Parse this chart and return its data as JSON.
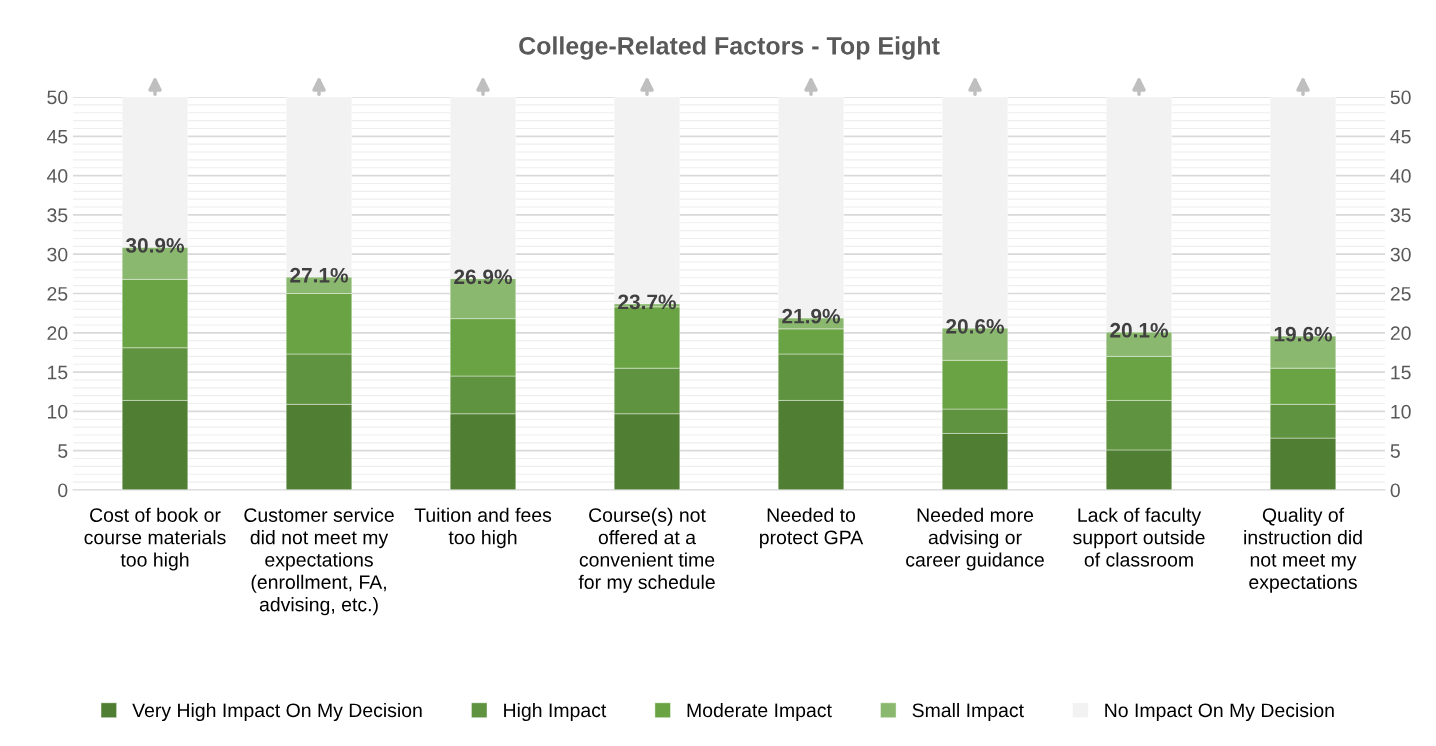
{
  "chart_data": {
    "type": "bar",
    "stacked": true,
    "title": "College-Related Factors - Top Eight",
    "categories": [
      "Cost of book or course materials too high",
      "Customer service did not meet my expectations (enrollment, FA, advising, etc.)",
      "Tuition and fees too high",
      "Course(s) not offered at a convenient time for my schedule",
      "Needed to protect GPA",
      "Needed more advising or career guidance",
      "Lack of faculty support outside of classroom",
      "Quality of instruction did not meet my expectations"
    ],
    "series": [
      {
        "name": "Very High Impact On My Decision",
        "color": "#507e32",
        "values": [
          11.4,
          10.9,
          9.7,
          9.7,
          11.4,
          7.2,
          5.1,
          6.6
        ]
      },
      {
        "name": "High Impact",
        "color": "#5f9340",
        "values": [
          6.7,
          6.4,
          4.8,
          5.8,
          5.9,
          3.1,
          6.3,
          4.3
        ]
      },
      {
        "name": "Moderate Impact",
        "color": "#6aa343",
        "values": [
          8.7,
          7.7,
          7.3,
          7.8,
          3.2,
          6.2,
          5.6,
          4.6
        ]
      },
      {
        "name": "Small Impact",
        "color": "#8ab86e",
        "values": [
          4.1,
          2.1,
          5.1,
          0.4,
          1.4,
          4.1,
          3.1,
          4.1
        ]
      },
      {
        "name": "No Impact On My Decision",
        "color": "#f2f2f2",
        "values": [
          19.1,
          22.9,
          23.1,
          26.3,
          28.1,
          29.4,
          29.9,
          30.4
        ]
      }
    ],
    "annotations": [
      {
        "text": "30.9%",
        "x": "Cost of book or course materials too high",
        "y": 30.9
      },
      {
        "text": "27.1%",
        "x": "Customer service did not meet my expectations (enrollment, FA, advising, etc.)",
        "y": 27.1
      },
      {
        "text": "26.9%",
        "x": "Tuition and fees too high",
        "y": 26.9
      },
      {
        "text": "23.7%",
        "x": "Course(s) not offered at a convenient time for my schedule",
        "y": 23.7
      },
      {
        "text": "21.9%",
        "x": "Needed to protect GPA",
        "y": 21.9
      },
      {
        "text": "20.6%",
        "x": "Needed more advising or career guidance",
        "y": 20.6
      },
      {
        "text": "20.1%",
        "x": "Lack of faculty support outside of classroom",
        "y": 20.1
      },
      {
        "text": "19.6%",
        "x": "Quality of instruction did not meet my expectations",
        "y": 19.6
      }
    ],
    "ylim": [
      0,
      50
    ],
    "yticks": [
      0,
      5,
      10,
      15,
      20,
      25,
      30,
      35,
      40,
      45,
      50
    ],
    "y2lim": [
      0,
      50
    ],
    "y2ticks": [
      0,
      5,
      10,
      15,
      20,
      25,
      30,
      35,
      40,
      45,
      50
    ],
    "grid": "y",
    "legend": "bottom"
  }
}
